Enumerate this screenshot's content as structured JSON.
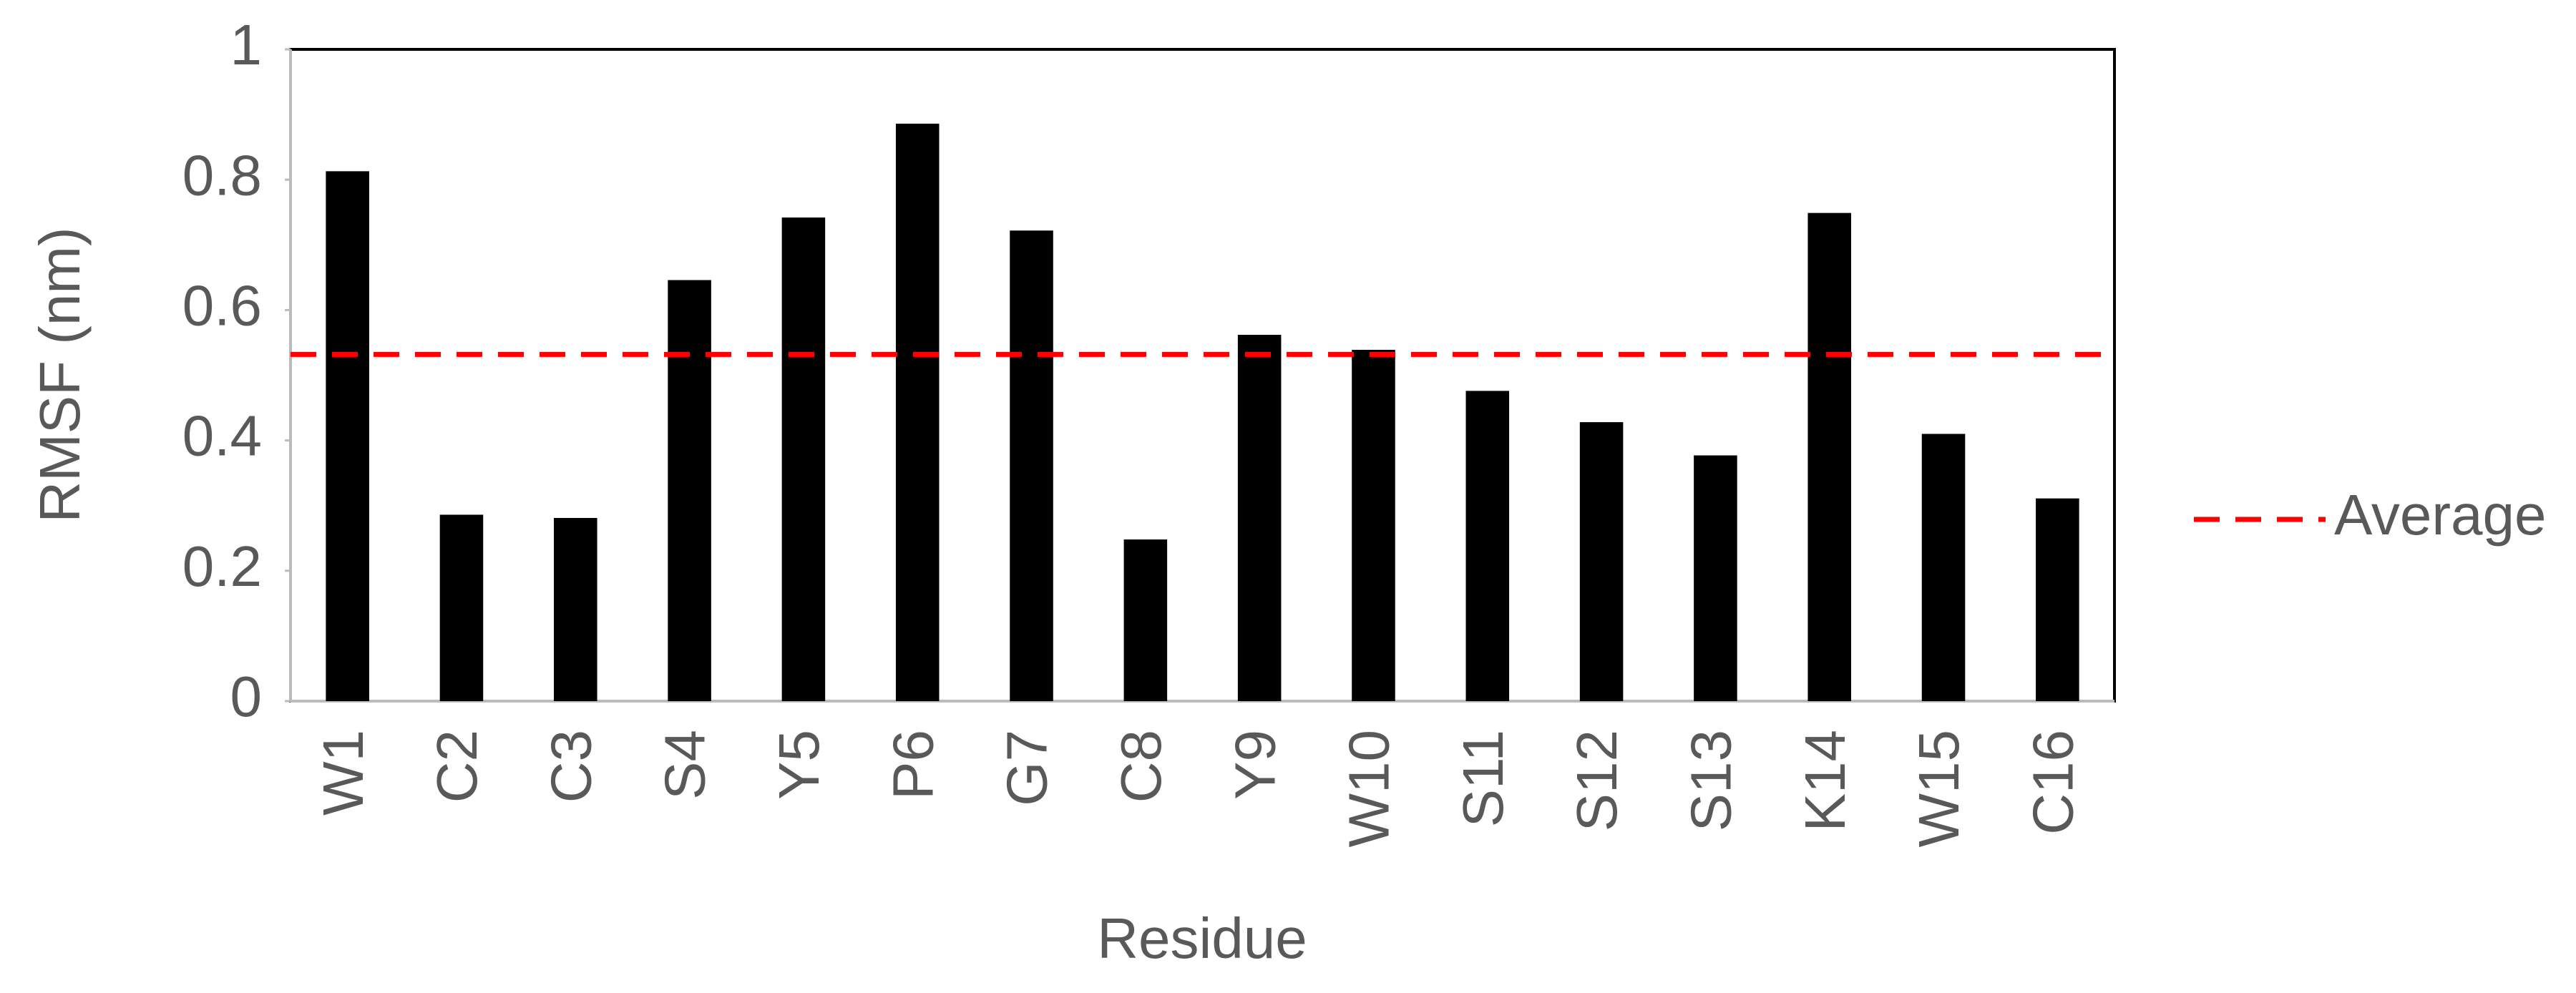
{
  "chart_data": {
    "type": "bar",
    "x_label": "Residue",
    "y_label": "RMSF (nm)",
    "categories": [
      "W1",
      "C2",
      "C3",
      "S4",
      "Y5",
      "P6",
      "G7",
      "C8",
      "Y9",
      "W10",
      "S11",
      "S12",
      "S13",
      "K14",
      "W15",
      "C16"
    ],
    "values": [
      0.813,
      0.286,
      0.281,
      0.646,
      0.742,
      0.886,
      0.722,
      0.248,
      0.562,
      0.539,
      0.476,
      0.428,
      0.377,
      0.749,
      0.41,
      0.311
    ],
    "color": "#000000",
    "reference_line": {
      "name": "Average",
      "value": 0.532,
      "color": "#ff0000",
      "style": "dashed"
    },
    "ylim": [
      0,
      1
    ],
    "yticks": [
      0,
      0.2,
      0.4,
      0.6,
      0.8,
      1
    ],
    "grid": false,
    "legend": "right"
  }
}
